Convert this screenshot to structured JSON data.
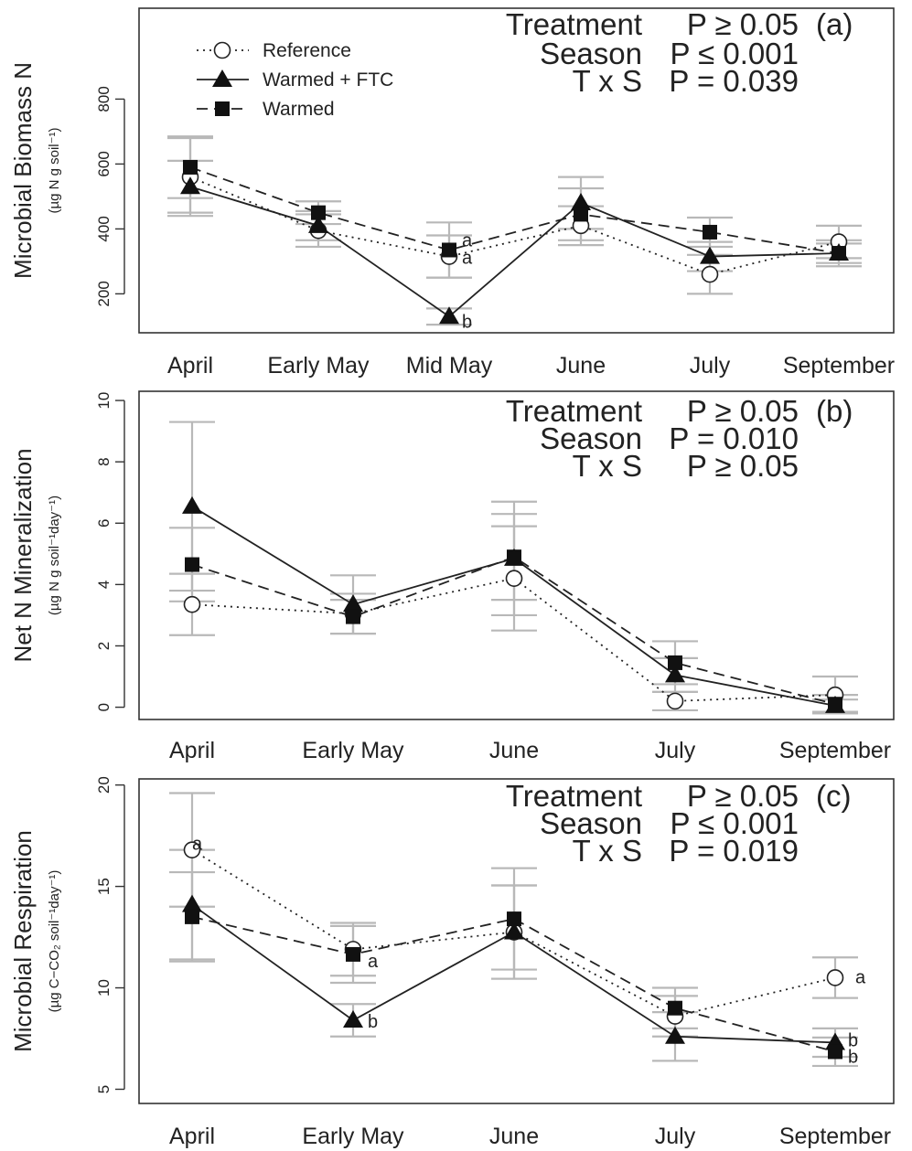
{
  "legend": [
    {
      "series": "Reference",
      "marker": "circle",
      "dash": "2,5"
    },
    {
      "series": "Warmed + FTC",
      "marker": "triangle",
      "dash": ""
    },
    {
      "series": "Warmed",
      "marker": "square",
      "dash": "12,7"
    }
  ],
  "chart_data": [
    {
      "type": "line",
      "panel_label": "(a)",
      "ylabel": "Microbial Biomass N",
      "yunit": "(µg N g soil⁻¹)",
      "ylim": [
        80,
        1080
      ],
      "yticks": [
        200,
        400,
        600,
        800
      ],
      "categories": [
        "April",
        "Early May",
        "Mid May",
        "June",
        "July",
        "September"
      ],
      "stats": [
        {
          "label": "Treatment",
          "p": "P ≥ 0.05"
        },
        {
          "label": "Season",
          "p": "P ≤ 0.001"
        },
        {
          "label": "T x S",
          "p": "P = 0.039"
        }
      ],
      "series": [
        {
          "name": "Reference",
          "marker": "circle",
          "dash": "2,5",
          "values": [
            560,
            395,
            315,
            410,
            260,
            360
          ],
          "err": [
            120,
            50,
            65,
            60,
            60,
            50
          ],
          "sig": [
            "",
            "",
            "a",
            "",
            "",
            ""
          ]
        },
        {
          "name": "Warmed + FTC",
          "marker": "triangle",
          "dash": "",
          "values": [
            530,
            410,
            130,
            480,
            315,
            325
          ],
          "err": [
            80,
            45,
            25,
            80,
            45,
            30
          ],
          "sig": [
            "",
            "",
            "b",
            "",
            "",
            ""
          ]
        },
        {
          "name": "Warmed",
          "marker": "square",
          "dash": "12,7",
          "values": [
            590,
            450,
            335,
            445,
            390,
            325
          ],
          "err": [
            95,
            35,
            85,
            80,
            45,
            40
          ],
          "sig": [
            "",
            "",
            "a",
            "",
            "",
            ""
          ]
        }
      ]
    },
    {
      "type": "line",
      "panel_label": "(b)",
      "ylabel": "Net N Mineralization",
      "yunit": "(µg N g soil⁻¹day⁻¹)",
      "ylim": [
        -0.4,
        10.3
      ],
      "yticks": [
        0,
        2,
        4,
        6,
        8,
        10
      ],
      "categories": [
        "April",
        "Early May",
        "June",
        "July",
        "September"
      ],
      "stats": [
        {
          "label": "Treatment",
          "p": "P ≥ 0.05"
        },
        {
          "label": "Season",
          "p": "P = 0.010"
        },
        {
          "label": "T x S",
          "p": "P ≥ 0.05"
        }
      ],
      "series": [
        {
          "name": "Reference",
          "marker": "circle",
          "dash": "2,5",
          "values": [
            3.35,
            3.05,
            4.2,
            0.2,
            0.4
          ],
          "err": [
            1.0,
            0.65,
            1.7,
            0.3,
            0.6
          ],
          "sig": [
            "",
            "",
            "",
            "",
            ""
          ]
        },
        {
          "name": "Warmed + FTC",
          "marker": "triangle",
          "dash": "",
          "values": [
            6.55,
            3.35,
            4.85,
            1.05,
            0.05
          ],
          "err": [
            2.75,
            0.95,
            1.85,
            0.55,
            0.2
          ],
          "sig": [
            "",
            "",
            "",
            "",
            ""
          ]
        },
        {
          "name": "Warmed",
          "marker": "square",
          "dash": "12,7",
          "values": [
            4.65,
            2.95,
            4.9,
            1.45,
            0.1
          ],
          "err": [
            1.2,
            0.55,
            1.4,
            0.7,
            0.3
          ],
          "sig": [
            "",
            "",
            "",
            "",
            ""
          ]
        }
      ]
    },
    {
      "type": "line",
      "panel_label": "(c)",
      "ylabel": "Microbial Respiration",
      "yunit": "(µg C−CO₂ soil⁻¹day⁻¹)",
      "ylim": [
        4.3,
        20.3
      ],
      "yticks": [
        5,
        10,
        15,
        20
      ],
      "categories": [
        "April",
        "Early May",
        "June",
        "July",
        "September"
      ],
      "stats": [
        {
          "label": "Treatment",
          "p": "P ≥ 0.05"
        },
        {
          "label": "Season",
          "p": "P ≤ 0.001"
        },
        {
          "label": "T x S",
          "p": "P = 0.019"
        }
      ],
      "series": [
        {
          "name": "Reference",
          "marker": "circle",
          "dash": "2,5",
          "values": [
            16.8,
            11.9,
            12.75,
            8.6,
            10.5
          ],
          "err": [
            2.8,
            1.3,
            2.3,
            1.0,
            1.0
          ],
          "sig": [
            "a",
            "",
            "",
            "",
            "a"
          ]
        },
        {
          "name": "Warmed + FTC",
          "marker": "triangle",
          "dash": "",
          "values": [
            14.1,
            8.4,
            12.75,
            7.6,
            7.3
          ],
          "err": [
            2.7,
            0.8,
            2.3,
            1.2,
            0.7
          ],
          "sig": [
            "",
            "b",
            "",
            "",
            "b"
          ]
        },
        {
          "name": "Warmed",
          "marker": "square",
          "dash": "12,7",
          "values": [
            13.5,
            11.65,
            13.4,
            9.0,
            6.85
          ],
          "err": [
            2.2,
            1.4,
            2.5,
            1.0,
            0.7
          ],
          "sig": [
            "",
            "a",
            "",
            "",
            "b"
          ]
        }
      ]
    }
  ]
}
